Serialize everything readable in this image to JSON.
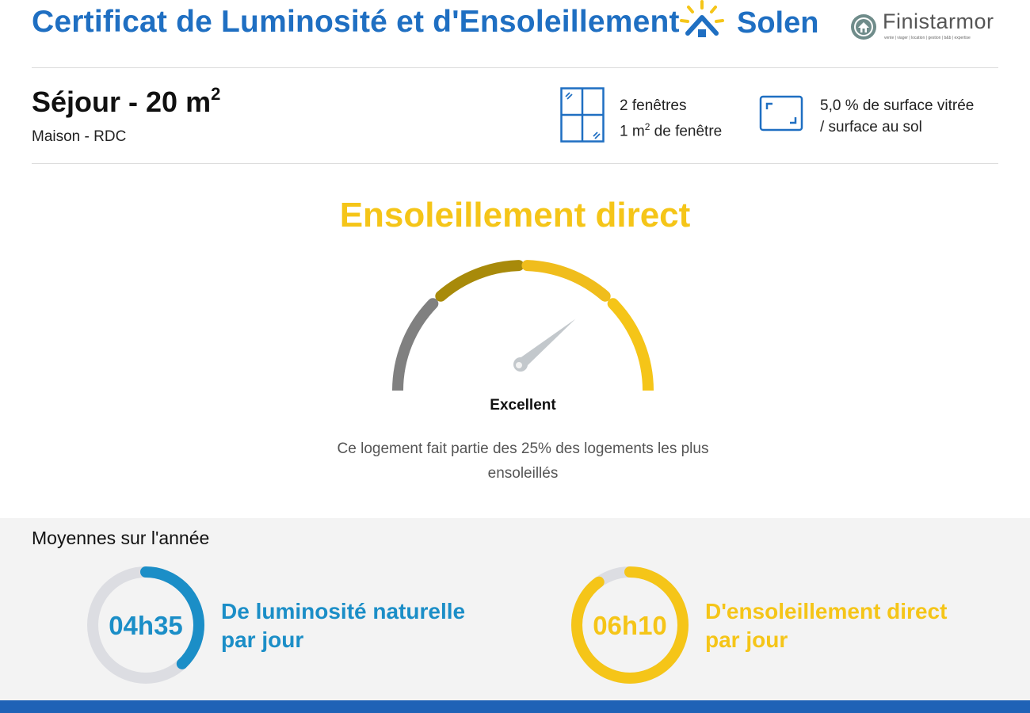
{
  "header": {
    "title": "Certificat de Luminosité et d'Ensoleillement",
    "solen_logo_text": "Solen",
    "finistarmor_logo_text": "Finistarmor",
    "finistarmor_tagline": "vente | viager | location | gestion | b&b | expertise",
    "brand_color": "#1f6fc2"
  },
  "room": {
    "title": "Séjour - 20 m",
    "title_superscript": "2",
    "subtitle": "Maison - RDC",
    "windows_count": "2 fenêtres",
    "window_area_prefix": "1 m",
    "window_area_superscript": "2",
    "window_area_suffix": " de fenêtre",
    "glazing_ratio_line1": "5,0 % de surface vitrée",
    "glazing_ratio_line2": "/ surface au sol",
    "icons": [
      "window-icon",
      "glazed-surface-icon"
    ]
  },
  "direct_sunlight": {
    "title": "Ensoleillement direct",
    "rating": "Excellent",
    "rating_level": 0.78,
    "description": "Ce logement fait partie des 25% des logements les plus ensoleillés",
    "accent_color": "#f5c518",
    "gauge_segment_colors": [
      "#808080",
      "#a88a0a",
      "#f0bd1c",
      "#f5c518"
    ]
  },
  "averages": {
    "title": "Moyennes sur l'année",
    "natural_light": {
      "value": "04h35",
      "label_line1": "De luminosité naturelle",
      "label_line2": "par jour",
      "fraction": 0.38,
      "color": "#1b8ec7"
    },
    "direct_sun": {
      "value": "06h10",
      "label_line1": "D'ensoleillement direct",
      "label_line2": "par jour",
      "fraction": 0.9,
      "color": "#f5c518"
    },
    "ring_track_color": "#dcdde2"
  }
}
